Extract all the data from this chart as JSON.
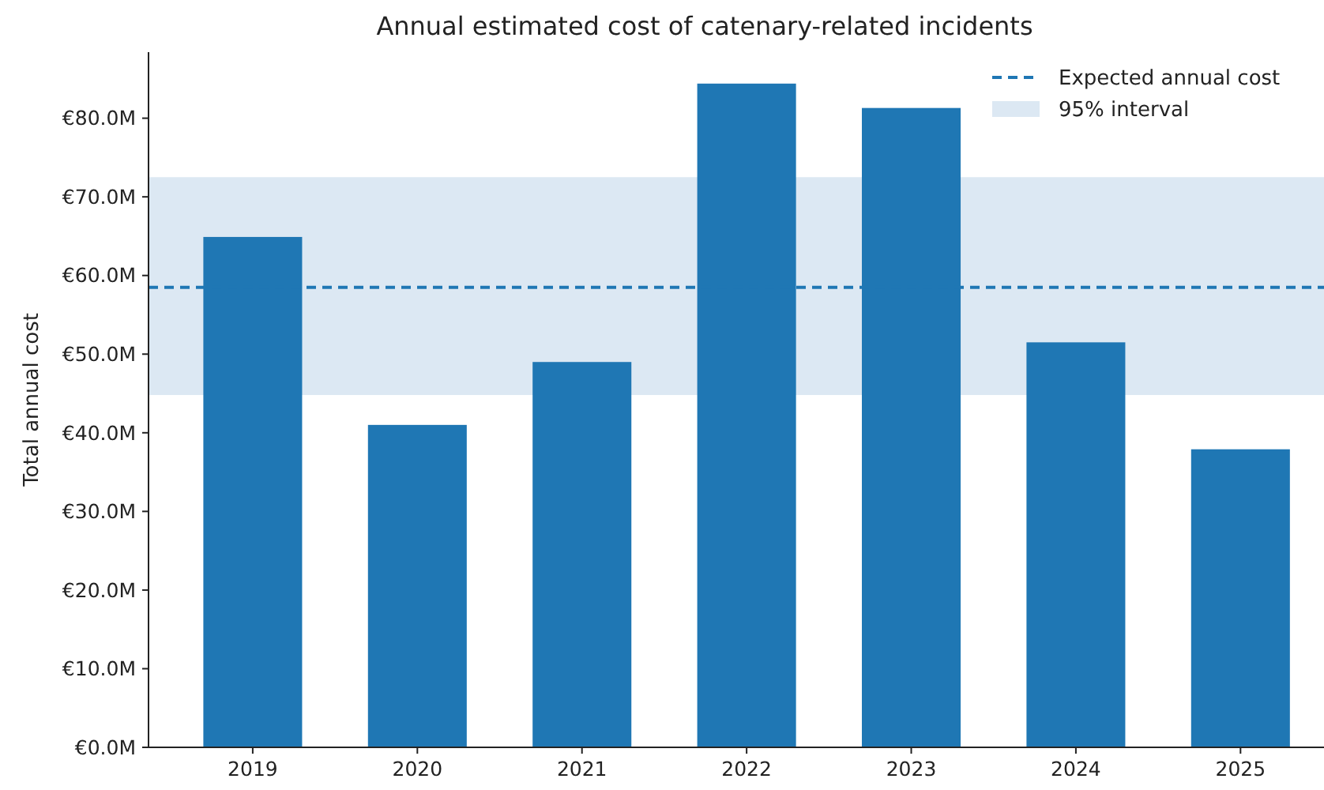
{
  "chart_data": {
    "type": "bar",
    "title": "Annual estimated cost of catenary-related incidents",
    "ylabel": "Total annual cost",
    "categories": [
      "2019",
      "2020",
      "2021",
      "2022",
      "2023",
      "2024",
      "2025"
    ],
    "values": [
      64.9,
      41.0,
      49.0,
      84.4,
      81.3,
      51.5,
      37.9
    ],
    "color": "#1f77b4",
    "ylim": [
      0,
      88.4
    ],
    "yticks": [
      {
        "value": 0,
        "label": "€0.0M"
      },
      {
        "value": 10,
        "label": "€10.0M"
      },
      {
        "value": 20,
        "label": "€20.0M"
      },
      {
        "value": 30,
        "label": "€30.0M"
      },
      {
        "value": 40,
        "label": "€40.0M"
      },
      {
        "value": 50,
        "label": "€50.0M"
      },
      {
        "value": 60,
        "label": "€60.0M"
      },
      {
        "value": 70,
        "label": "€70.0M"
      },
      {
        "value": 80,
        "label": "€80.0M"
      }
    ],
    "ref_lines": [
      {
        "axis": "y",
        "value": 58.5,
        "label": "Expected annual cost",
        "color": "#1f77b4",
        "line_style": "dashed"
      }
    ],
    "bands": [
      {
        "axis": "y",
        "from": 44.8,
        "to": 72.5,
        "label": "95% interval",
        "color": "#dce8f3"
      }
    ],
    "legend": "top right",
    "grid": false
  }
}
